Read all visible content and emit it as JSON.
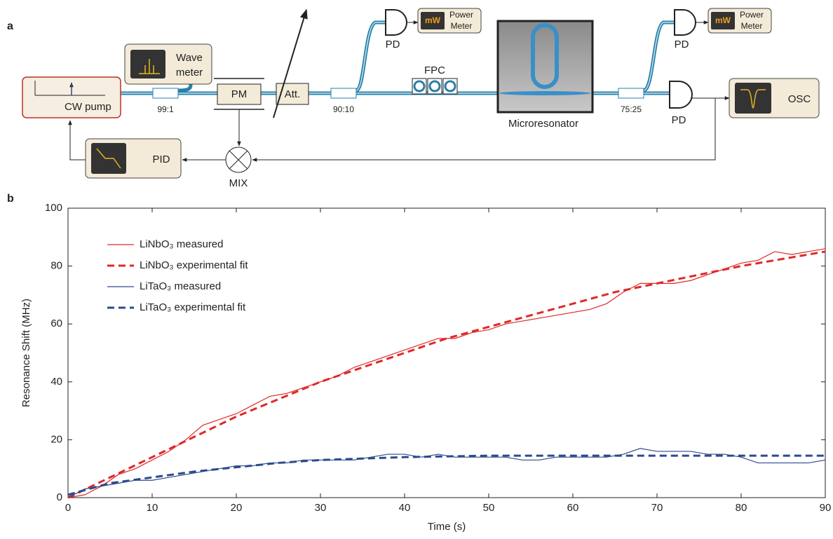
{
  "diagram": {
    "panel_label": "a",
    "cw_pump": "CW pump",
    "wavemeter": [
      "Wave",
      "meter"
    ],
    "coupler_1": "99:1",
    "pm": "PM",
    "att": "Att.",
    "coupler_2": "90:10",
    "pd_1": "PD",
    "power_meter_1": {
      "unit": "mW",
      "label": [
        "Power",
        "Meter"
      ]
    },
    "fpc": "FPC",
    "microresonator": "Microresonator",
    "coupler_3": "75:25",
    "pd_2": "PD",
    "power_meter_2": {
      "unit": "mW",
      "label": [
        "Power",
        "Meter"
      ]
    },
    "pd_3": "PD",
    "osc": "OSC",
    "pid": "PID",
    "mix": "MIX"
  },
  "chart_data": {
    "type": "line",
    "panel_label": "b",
    "x_label": "Time (s)",
    "y_label": "Resonance Shift (MHz)",
    "xlim": [
      0,
      90
    ],
    "ylim": [
      0,
      100
    ],
    "xticks": [
      0,
      10,
      20,
      30,
      40,
      50,
      60,
      70,
      80,
      90
    ],
    "yticks": [
      0,
      20,
      40,
      60,
      80,
      100
    ],
    "legend": "upper left",
    "series": [
      {
        "name": "LiNbO₃ measured",
        "color": "#e02828",
        "dash": false,
        "x": [
          0,
          2,
          4,
          6,
          8,
          10,
          12,
          14,
          16,
          18,
          20,
          22,
          24,
          26,
          28,
          30,
          32,
          34,
          36,
          38,
          40,
          42,
          44,
          46,
          48,
          50,
          52,
          54,
          56,
          58,
          60,
          62,
          64,
          66,
          68,
          70,
          72,
          74,
          76,
          78,
          80,
          82,
          84,
          86,
          88,
          90
        ],
        "values": [
          0,
          1,
          4,
          8,
          10,
          13,
          16,
          20,
          25,
          27,
          29,
          32,
          35,
          36,
          38,
          40,
          42,
          45,
          47,
          49,
          51,
          53,
          55,
          55,
          57,
          58,
          60,
          61,
          62,
          63,
          64,
          65,
          67,
          71,
          74,
          74,
          74,
          75,
          77,
          79,
          81,
          82,
          85,
          84,
          85,
          86
        ]
      },
      {
        "name": "LiNbO₃ experimental fit",
        "color": "#e02828",
        "dash": true,
        "x": [
          0,
          5,
          10,
          15,
          20,
          25,
          30,
          35,
          40,
          45,
          50,
          55,
          60,
          65,
          70,
          75,
          80,
          85,
          90
        ],
        "values": [
          0,
          7,
          14,
          21,
          28,
          34,
          40,
          45,
          50,
          55,
          59,
          63,
          67,
          71,
          74,
          77,
          80,
          82.5,
          85
        ]
      },
      {
        "name": "LiTaO₃ measured",
        "color": "#2c4a8c",
        "dash": false,
        "x": [
          0,
          2,
          4,
          6,
          8,
          10,
          12,
          14,
          16,
          18,
          20,
          22,
          24,
          26,
          28,
          30,
          32,
          34,
          36,
          38,
          40,
          42,
          44,
          46,
          48,
          50,
          52,
          54,
          56,
          58,
          60,
          62,
          64,
          66,
          68,
          70,
          72,
          74,
          76,
          78,
          80,
          82,
          84,
          86,
          88,
          90
        ],
        "values": [
          0,
          3,
          4,
          5,
          6,
          6,
          7,
          8,
          9,
          10,
          11,
          11,
          12,
          12,
          13,
          13,
          13,
          13,
          14,
          15,
          15,
          14,
          15,
          14,
          14,
          14,
          14,
          13,
          13,
          14,
          14,
          14,
          14,
          15,
          17,
          16,
          16,
          16,
          15,
          15,
          14,
          12,
          12,
          12,
          12,
          13
        ]
      },
      {
        "name": "LiTaO₃ experimental fit",
        "color": "#2c4a8c",
        "dash": true,
        "x": [
          0,
          5,
          10,
          15,
          20,
          25,
          30,
          35,
          40,
          50,
          60,
          70,
          80,
          90
        ],
        "values": [
          1,
          5,
          7,
          9,
          10.5,
          12,
          13,
          13.5,
          14,
          14.5,
          14.5,
          14.5,
          14.5,
          14.5
        ]
      }
    ]
  }
}
